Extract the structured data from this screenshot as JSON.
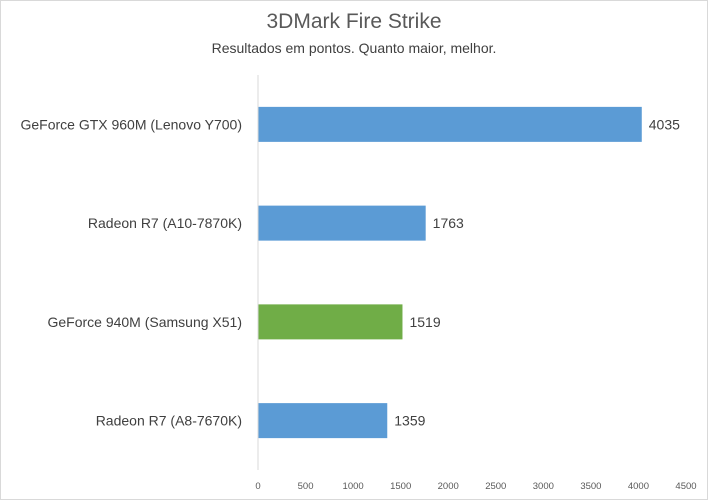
{
  "chart_data": {
    "type": "bar",
    "orientation": "horizontal",
    "title": "3DMark Fire Strike",
    "subtitle": "Resultados em pontos. Quanto maior, melhor.",
    "categories": [
      "GeForce GTX 960M (Lenovo Y700)",
      "Radeon R7 (A10-7870K)",
      "GeForce 940M (Samsung X51)",
      "Radeon R7 (A8-7670K)"
    ],
    "values": [
      4035,
      1763,
      1519,
      1359
    ],
    "bar_colors": [
      "#5b9bd5",
      "#5b9bd5",
      "#70ad47",
      "#5b9bd5"
    ],
    "data_labels": [
      "4035",
      "1763",
      "1519",
      "1359"
    ],
    "xlim": [
      0,
      4500
    ],
    "xticks": [
      "0",
      "500",
      "1000",
      "1500",
      "2000",
      "2500",
      "3000",
      "3500",
      "4000",
      "4500"
    ],
    "grid": false,
    "legend": "none"
  }
}
